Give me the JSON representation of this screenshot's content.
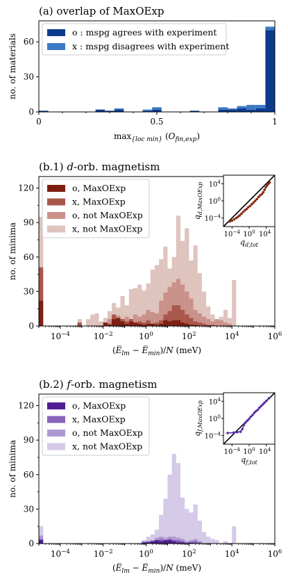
{
  "colors": {
    "a_o": "#0d3a8c",
    "a_x": "#3c79c4",
    "d_o": "#7d1f10",
    "d_x": "#a8574a",
    "d_o_not": "#c9918a",
    "d_x_not": "#dfc3bd",
    "f_o": "#4e1e92",
    "f_x": "#8a64bd",
    "f_o_not": "#ae98d1",
    "f_x_not": "#d4c9e6"
  },
  "chart_data": [
    {
      "type": "bar",
      "title": "(a) overlap of MaxOExp",
      "xlabel": "max_{loc min} (O_{fin,exp})",
      "ylabel": "no. of materials",
      "xlim": [
        0,
        1
      ],
      "ylim": [
        0,
        78
      ],
      "xticks": [
        "0",
        "0.5",
        "1"
      ],
      "yticks": [
        "0",
        "30",
        "60"
      ],
      "stacked": true,
      "bin_width": 0.04,
      "x": [
        0.02,
        0.06,
        0.1,
        0.14,
        0.18,
        0.22,
        0.26,
        0.3,
        0.34,
        0.38,
        0.42,
        0.46,
        0.5,
        0.54,
        0.58,
        0.62,
        0.66,
        0.7,
        0.74,
        0.78,
        0.82,
        0.86,
        0.9,
        0.94,
        0.98
      ],
      "legend": {
        "position": "top-left",
        "entries": [
          "o : mspg agrees with experiment",
          "x : mspg disagrees with experiment"
        ]
      },
      "series": [
        {
          "name": "o : mspg agrees with experiment",
          "values": [
            1,
            0,
            0,
            0,
            0,
            0,
            2,
            1,
            2,
            0,
            0,
            1,
            2,
            0,
            0,
            0,
            1,
            0,
            0,
            2,
            2,
            3,
            2,
            3,
            70
          ]
        },
        {
          "name": "x : mspg disagrees with experiment",
          "values": [
            0,
            0,
            0,
            0,
            0,
            0,
            0,
            0,
            1,
            0,
            0,
            1,
            2,
            0,
            0,
            0,
            0,
            0,
            0,
            2,
            1,
            2,
            4,
            3,
            3
          ]
        }
      ]
    },
    {
      "type": "bar",
      "title": "(b.1) d-orb. magnetism",
      "xlabel": "(E̅_lm − E̅_min)/N (meV)",
      "ylabel": "no. of minima",
      "xscale": "log",
      "xlim": [
        1e-05,
        1000000
      ],
      "ylim": [
        0,
        130
      ],
      "xticks": [
        "10^-4",
        "10^-2",
        "10^0",
        "10^2",
        "10^4",
        "10^6"
      ],
      "yticks": [
        "0",
        "30",
        "60",
        "90",
        "120"
      ],
      "overlay": true,
      "bin_log_width": 0.2,
      "x_log10": [
        -4.9,
        -4.7,
        -4.5,
        -4.3,
        -4.1,
        -3.9,
        -3.7,
        -3.5,
        -3.3,
        -3.1,
        -2.9,
        -2.7,
        -2.5,
        -2.3,
        -2.1,
        -1.9,
        -1.7,
        -1.5,
        -1.3,
        -1.1,
        -0.9,
        -0.7,
        -0.5,
        -0.3,
        -0.1,
        0.1,
        0.3,
        0.5,
        0.7,
        0.9,
        1.1,
        1.3,
        1.5,
        1.7,
        1.9,
        2.1,
        2.3,
        2.5,
        2.7,
        2.9,
        3.1,
        3.3,
        3.5,
        3.7,
        3.9,
        4.1,
        4.3,
        4.5,
        4.7,
        4.9
      ],
      "legend": {
        "position": "top-left",
        "entries": [
          "o, MaxOExp",
          "x, MaxOExp",
          "o, not MaxOExp",
          "x, not MaxOExp"
        ]
      },
      "series": [
        {
          "name": "x, not MaxOExp",
          "values": [
            95,
            0,
            0,
            0,
            0,
            0,
            0,
            0,
            0,
            6,
            0,
            6,
            10,
            11,
            4,
            7,
            13,
            20,
            16,
            26,
            18,
            32,
            33,
            36,
            31,
            37,
            49,
            53,
            58,
            69,
            50,
            60,
            96,
            74,
            85,
            57,
            70,
            46,
            30,
            17,
            10,
            5,
            8,
            14,
            7,
            40,
            0,
            0,
            0,
            0
          ]
        },
        {
          "name": "o, not MaxOExp",
          "values": [
            42,
            0,
            0,
            0,
            0,
            0,
            0,
            0,
            0,
            0,
            0,
            0,
            0,
            0,
            0,
            2,
            6,
            8,
            9,
            6,
            8,
            5,
            10,
            8,
            10,
            14,
            12,
            11,
            22,
            29,
            34,
            38,
            41,
            36,
            30,
            24,
            14,
            11,
            8,
            6,
            4,
            6,
            5,
            3,
            2,
            0,
            0,
            0,
            0,
            0
          ]
        },
        {
          "name": "x, MaxOExp",
          "values": [
            51,
            0,
            0,
            0,
            0,
            0,
            0,
            0,
            0,
            3,
            0,
            0,
            0,
            0,
            0,
            3,
            2,
            10,
            2,
            6,
            4,
            6,
            3,
            4,
            3,
            5,
            2,
            3,
            5,
            10,
            13,
            18,
            18,
            14,
            10,
            7,
            4,
            3,
            2,
            1,
            1,
            0,
            0,
            0,
            0,
            0,
            0,
            0,
            0,
            0
          ]
        },
        {
          "name": "o, MaxOExp",
          "values": [
            22,
            0,
            0,
            0,
            0,
            0,
            0,
            0,
            0,
            0,
            0,
            0,
            0,
            0,
            0,
            3,
            1,
            6,
            7,
            4,
            2,
            4,
            3,
            2,
            1,
            2,
            2,
            1,
            2,
            5,
            4,
            5,
            5,
            3,
            2,
            1,
            1,
            0,
            0,
            0,
            0,
            0,
            0,
            0,
            0,
            0,
            0,
            0,
            0,
            0
          ]
        }
      ],
      "inset": {
        "type": "scatter",
        "xlabel": "q_{d,tot}",
        "ylabel": "q_{d,MaxOExp}",
        "xscale": "log",
        "yscale": "log",
        "xlim": [
          1e-06,
          1000000
        ],
        "ylim": [
          1e-06,
          1000000
        ],
        "ticks": [
          "10^-4",
          "10^0",
          "10^4"
        ],
        "diagonal": true,
        "x_log10": [
          -4.5,
          -4.0,
          -3.5,
          -3.0,
          -2.6,
          -2.2,
          -1.8,
          -1.4,
          -1.0,
          -0.6,
          -0.2,
          0.2,
          0.6,
          1.0,
          1.4,
          1.8,
          2.2,
          2.6,
          3.0,
          3.3,
          3.6,
          3.9,
          4.2,
          4.5,
          4.8
        ],
        "y_log10": [
          -4.8,
          -4.6,
          -4.3,
          -4.0,
          -3.7,
          -3.4,
          -3.0,
          -2.6,
          -2.2,
          -1.9,
          -1.5,
          -1.2,
          -0.8,
          -0.4,
          0.0,
          0.4,
          0.9,
          1.3,
          1.6,
          2.0,
          2.6,
          3.2,
          3.6,
          4.0,
          4.3
        ]
      }
    },
    {
      "type": "bar",
      "title": "(b.2) f-orb. magnetism",
      "xlabel": "(E̅_lm − E̅_min)/N (meV)",
      "ylabel": "no. of minima",
      "xscale": "log",
      "xlim": [
        1e-05,
        1000000
      ],
      "ylim": [
        0,
        130
      ],
      "xticks": [
        "10^-4",
        "10^-2",
        "10^0",
        "10^2",
        "10^4",
        "10^6"
      ],
      "yticks": [
        "0",
        "30",
        "60",
        "90",
        "120"
      ],
      "overlay": true,
      "bin_log_width": 0.2,
      "x_log10": [
        -4.9,
        -4.7,
        -4.5,
        -4.3,
        -4.1,
        -3.9,
        -3.7,
        -3.5,
        -3.3,
        -3.1,
        -2.9,
        -2.7,
        -2.5,
        -2.3,
        -2.1,
        -1.9,
        -1.7,
        -1.5,
        -1.3,
        -1.1,
        -0.9,
        -0.7,
        -0.5,
        -0.3,
        -0.1,
        0.1,
        0.3,
        0.5,
        0.7,
        0.9,
        1.1,
        1.3,
        1.5,
        1.7,
        1.9,
        2.1,
        2.3,
        2.5,
        2.7,
        2.9,
        3.1,
        3.3,
        3.5,
        3.7,
        3.9,
        4.1,
        4.3,
        4.5,
        4.7,
        4.9
      ],
      "legend": {
        "position": "top-left",
        "entries": [
          "o, MaxOExp",
          "x, MaxOExp",
          "o, not MaxOExp",
          "x, not MaxOExp"
        ]
      },
      "series": [
        {
          "name": "x, not MaxOExp",
          "values": [
            15,
            0,
            0,
            0,
            0,
            0,
            0,
            0,
            0,
            0,
            0,
            0,
            0,
            0,
            0,
            0,
            0,
            0,
            0,
            0,
            0,
            0,
            0,
            0,
            3,
            6,
            8,
            12,
            25,
            39,
            60,
            78,
            70,
            40,
            30,
            27,
            34,
            20,
            10,
            6,
            4,
            3,
            0,
            2,
            0,
            15,
            0,
            0,
            0,
            0
          ]
        },
        {
          "name": "o, not MaxOExp",
          "values": [
            7,
            0,
            0,
            0,
            0,
            0,
            0,
            0,
            0,
            0,
            0,
            0,
            0,
            0,
            0,
            0,
            0,
            0,
            0,
            0,
            0,
            0,
            0,
            0,
            2,
            2,
            3,
            5,
            6,
            5,
            6,
            6,
            5,
            4,
            2,
            3,
            4,
            2,
            0,
            0,
            0,
            0,
            0,
            0,
            0,
            0,
            0,
            0,
            0,
            0
          ]
        },
        {
          "name": "x, MaxOExp",
          "values": [
            4,
            0,
            0,
            0,
            0,
            0,
            0,
            0,
            0,
            0,
            0,
            0,
            0,
            0,
            0,
            0,
            0,
            0,
            0,
            0,
            0,
            0,
            0,
            0,
            1,
            2,
            2,
            2,
            4,
            3,
            4,
            3,
            3,
            2,
            1,
            1,
            2,
            1,
            0,
            0,
            0,
            0,
            0,
            0,
            0,
            0,
            0,
            0,
            0,
            0
          ]
        },
        {
          "name": "o, MaxOExp",
          "values": [
            3,
            0,
            0,
            0,
            0,
            0,
            0,
            0,
            0,
            0,
            0,
            0,
            0,
            0,
            0,
            0,
            0,
            0,
            0,
            0,
            0,
            0,
            0,
            0,
            1,
            1,
            2,
            3,
            2,
            3,
            3,
            2,
            1,
            1,
            0,
            1,
            0,
            0,
            0,
            0,
            0,
            0,
            0,
            0,
            0,
            0,
            0,
            0,
            0,
            0
          ]
        }
      ],
      "inset": {
        "type": "scatter",
        "xlabel": "q_{f,tot}",
        "ylabel": "q_{f,MaxOExp}",
        "xscale": "log",
        "yscale": "log",
        "xlim": [
          1e-06,
          1000000
        ],
        "ylim": [
          1e-06,
          1000000
        ],
        "ticks": [
          "10^-4",
          "10^0",
          "10^4"
        ],
        "diagonal": true,
        "x_log10": [
          -5.0,
          -3.6,
          -2.8,
          -2.0,
          -1.6,
          -1.2,
          -0.8,
          -0.4,
          0.0,
          0.4,
          0.8,
          1.2,
          1.6,
          2.0,
          2.4,
          2.8,
          3.2,
          3.6,
          4.0,
          4.6
        ],
        "y_log10": [
          -3.4,
          -3.3,
          -3.2,
          -3.1,
          -2.5,
          -1.5,
          -0.9,
          -0.5,
          -0.1,
          0.4,
          0.8,
          1.3,
          1.7,
          2.0,
          2.5,
          2.9,
          3.3,
          3.7,
          4.1,
          4.7
        ]
      }
    }
  ]
}
